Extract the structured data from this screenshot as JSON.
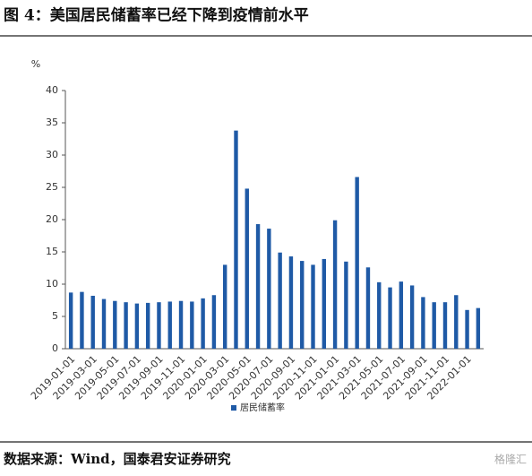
{
  "chart_data": {
    "type": "bar",
    "title": "图 4：美国居民储蓄率已经下降到疫情前水平",
    "y_unit": "%",
    "source": "数据来源：Wind，国泰君安证券研究",
    "watermark": "格隆汇",
    "categories": [
      "2019-01-01",
      null,
      "2019-03-01",
      null,
      "2019-05-01",
      null,
      "2019-07-01",
      null,
      "2019-09-01",
      null,
      "2019-11-01",
      null,
      "2020-01-01",
      null,
      "2020-03-01",
      null,
      "2020-05-01",
      null,
      "2020-07-01",
      null,
      "2020-09-01",
      null,
      "2020-11-01",
      null,
      "2021-01-01",
      null,
      "2021-03-01",
      null,
      "2021-05-01",
      null,
      "2021-07-01",
      null,
      "2021-09-01",
      null,
      "2021-11-01",
      null,
      "2022-01-01",
      null
    ],
    "series": [
      {
        "name": "居民储蓄率",
        "color": "#1f5aa6",
        "values": [
          8.7,
          8.8,
          8.2,
          7.7,
          7.4,
          7.2,
          7.0,
          7.1,
          7.2,
          7.3,
          7.4,
          7.3,
          7.8,
          8.3,
          13.0,
          33.8,
          24.8,
          19.3,
          18.6,
          14.9,
          14.3,
          13.6,
          13.0,
          13.9,
          19.9,
          13.5,
          26.6,
          12.6,
          10.3,
          9.5,
          10.4,
          9.8,
          8.0,
          7.2,
          7.2,
          8.3,
          6.0,
          6.3
        ]
      }
    ],
    "ylim": [
      0,
      40
    ],
    "yticks": [
      0,
      5,
      10,
      15,
      20,
      25,
      30,
      35,
      40
    ],
    "grid": false,
    "legend": "bottom"
  }
}
